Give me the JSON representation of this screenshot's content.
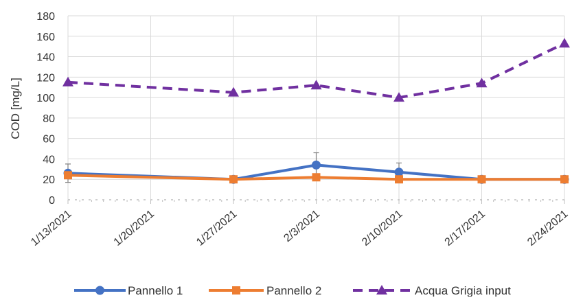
{
  "chart_data": {
    "type": "line",
    "title": "",
    "xlabel": "",
    "ylabel": "COD [mg/L]",
    "ylim": [
      0,
      180
    ],
    "yticks": [
      0,
      20,
      40,
      60,
      80,
      100,
      120,
      140,
      160,
      180
    ],
    "x": [
      "1/13/2021",
      "1/20/2021",
      "1/27/2021",
      "2/3/2021",
      "2/10/2021",
      "2/17/2021",
      "2/24/2021"
    ],
    "grid": true,
    "legend_position": "bottom",
    "series": [
      {
        "name": "Pannello 1",
        "color": "#4472C4",
        "line_style": "solid",
        "marker": "circle",
        "points": [
          {
            "x": "1/13/2021",
            "y": 26,
            "err": 9
          },
          {
            "x": "1/27/2021",
            "y": 20
          },
          {
            "x": "2/3/2021",
            "y": 34,
            "err": 12
          },
          {
            "x": "2/10/2021",
            "y": 27,
            "err": 9
          },
          {
            "x": "2/17/2021",
            "y": 20
          },
          {
            "x": "2/24/2021",
            "y": 20
          }
        ]
      },
      {
        "name": "Pannello 2",
        "color": "#ED7D31",
        "line_style": "solid",
        "marker": "square",
        "points": [
          {
            "x": "1/13/2021",
            "y": 24
          },
          {
            "x": "1/27/2021",
            "y": 20
          },
          {
            "x": "2/3/2021",
            "y": 22
          },
          {
            "x": "2/10/2021",
            "y": 20
          },
          {
            "x": "2/17/2021",
            "y": 20
          },
          {
            "x": "2/24/2021",
            "y": 20
          }
        ]
      },
      {
        "name": "Acqua Grigia input",
        "color": "#7030A0",
        "line_style": "dashed",
        "marker": "triangle",
        "points": [
          {
            "x": "1/13/2021",
            "y": 115
          },
          {
            "x": "1/27/2021",
            "y": 105
          },
          {
            "x": "2/3/2021",
            "y": 112
          },
          {
            "x": "2/10/2021",
            "y": 100
          },
          {
            "x": "2/17/2021",
            "y": 114
          },
          {
            "x": "2/24/2021",
            "y": 153
          }
        ]
      }
    ]
  }
}
